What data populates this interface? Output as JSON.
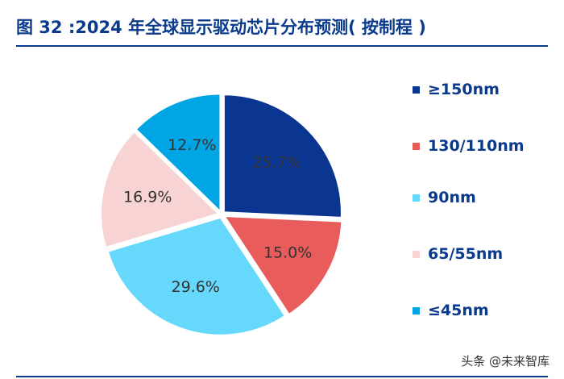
{
  "title": "图 32 :2024 年全球显示驱动芯片分布预测( 按制程 )",
  "watermark": "头条 @未来智库",
  "chart_data": {
    "type": "pie",
    "title": "图 32 :2024 年全球显示驱动芯片分布预测( 按制程 )",
    "legend_position": "right",
    "slices": [
      {
        "name": "≥150nm",
        "value": 25.7,
        "label": "25.7%",
        "color": "#0a3590"
      },
      {
        "name": "130/110nm",
        "value": 15.0,
        "label": "15.0%",
        "color": "#e85c5c"
      },
      {
        "name": "90nm",
        "value": 29.6,
        "label": "29.6%",
        "color": "#66d8fc"
      },
      {
        "name": "65/55nm",
        "value": 16.9,
        "label": "16.9%",
        "color": "#f8d3d3"
      },
      {
        "name": "≤45nm",
        "value": 12.7,
        "label": "12.7%",
        "color": "#00a5e3"
      }
    ]
  }
}
